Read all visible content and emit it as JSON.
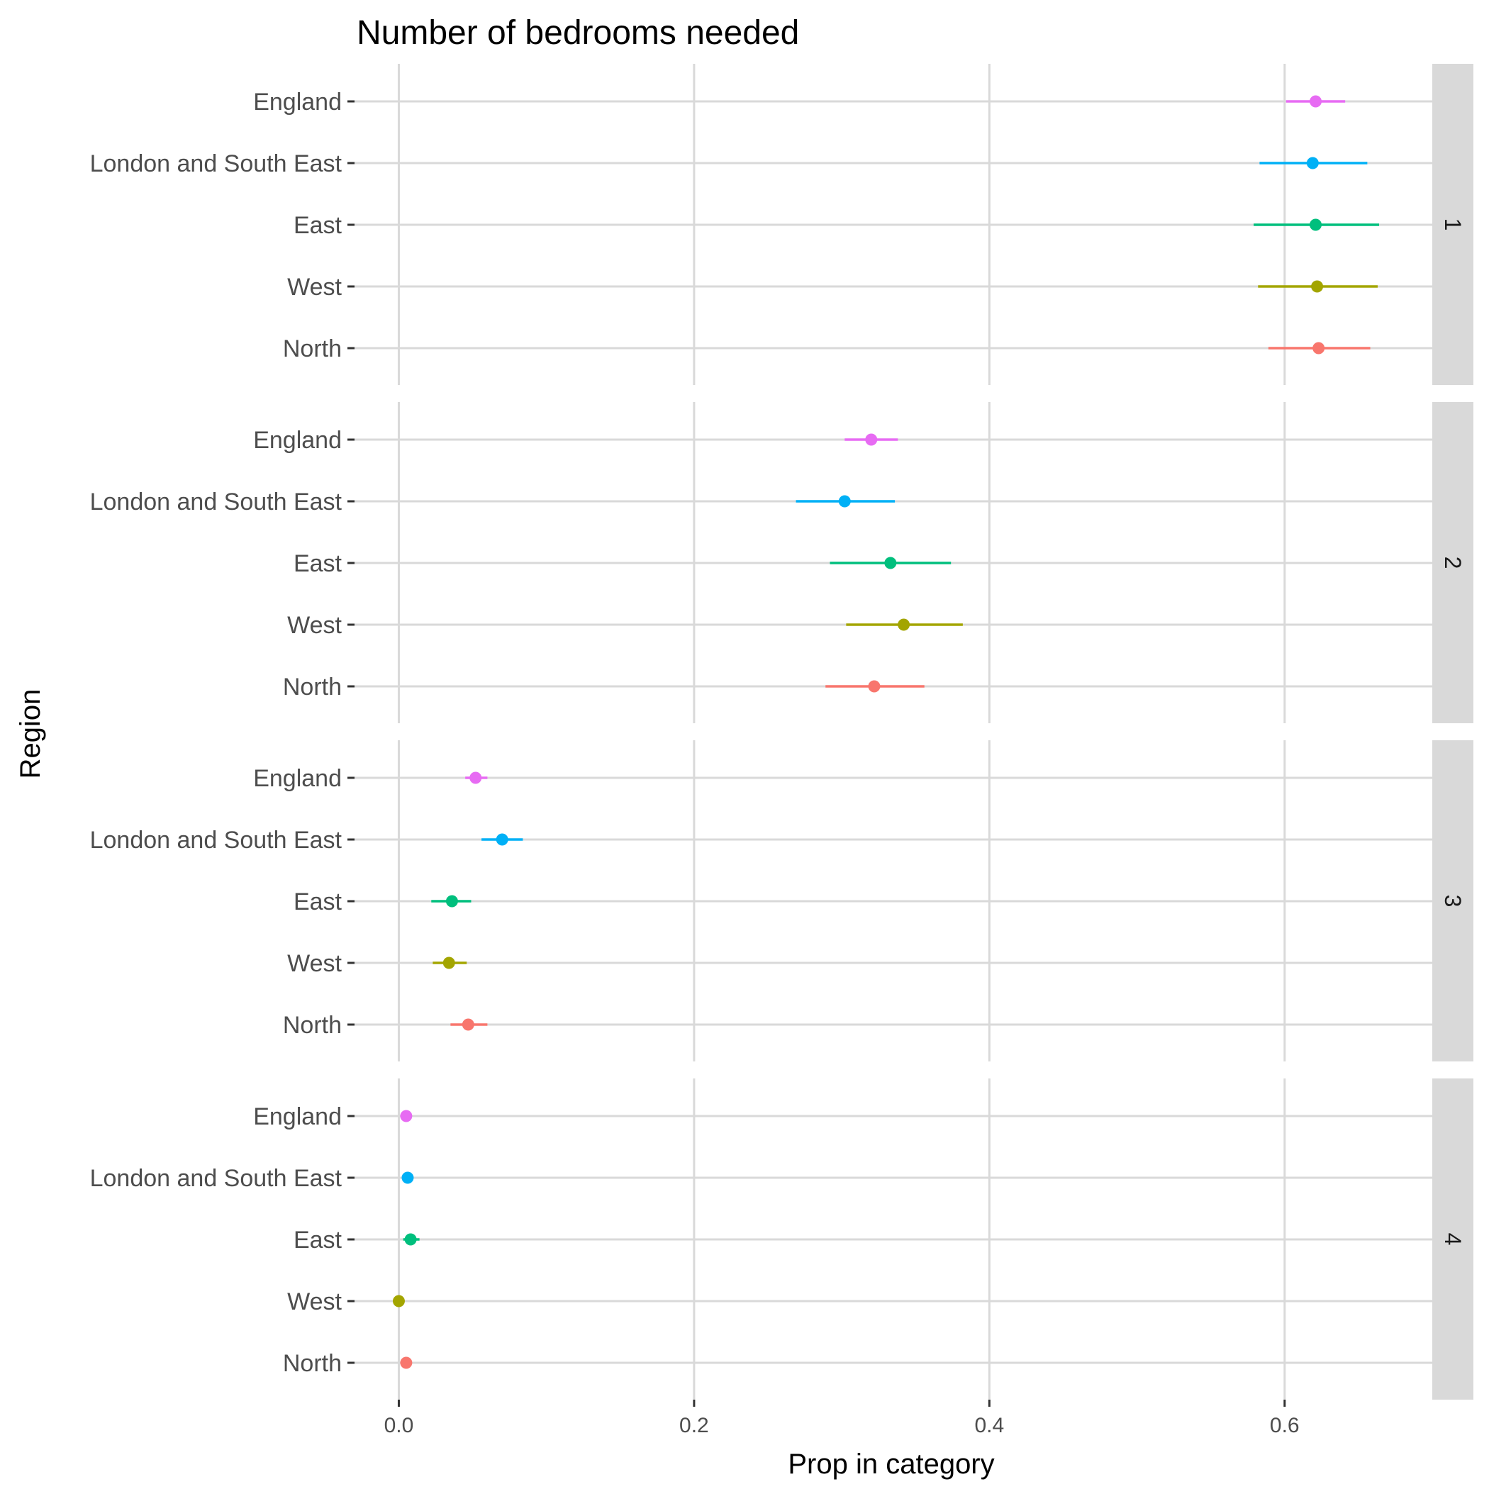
{
  "chart_data": {
    "type": "scatter",
    "title": "Number of bedrooms needed",
    "xlabel": "Prop in category",
    "ylabel": "Region",
    "xlim": [
      -0.03,
      0.7
    ],
    "x_ticks": [
      "0.0",
      "0.2",
      "0.4",
      "0.6"
    ],
    "x_tick_values": [
      0.0,
      0.2,
      0.4,
      0.6
    ],
    "categories": [
      "England",
      "London and South East",
      "East",
      "West",
      "North"
    ],
    "colors": {
      "England": "#e76bf3",
      "London and South East": "#00b0f6",
      "East": "#00bf7d",
      "West": "#a3a500",
      "North": "#f8766d"
    },
    "grid": true,
    "legend": "none",
    "facets": [
      {
        "label": "1",
        "points": [
          {
            "region": "England",
            "x": 0.621,
            "lo": 0.601,
            "hi": 0.641
          },
          {
            "region": "London and South East",
            "x": 0.619,
            "lo": 0.583,
            "hi": 0.656
          },
          {
            "region": "East",
            "x": 0.621,
            "lo": 0.579,
            "hi": 0.664
          },
          {
            "region": "West",
            "x": 0.622,
            "lo": 0.582,
            "hi": 0.663
          },
          {
            "region": "North",
            "x": 0.623,
            "lo": 0.589,
            "hi": 0.658
          }
        ]
      },
      {
        "label": "2",
        "points": [
          {
            "region": "England",
            "x": 0.32,
            "lo": 0.302,
            "hi": 0.338
          },
          {
            "region": "London and South East",
            "x": 0.302,
            "lo": 0.269,
            "hi": 0.336
          },
          {
            "region": "East",
            "x": 0.333,
            "lo": 0.292,
            "hi": 0.374
          },
          {
            "region": "West",
            "x": 0.342,
            "lo": 0.303,
            "hi": 0.382
          },
          {
            "region": "North",
            "x": 0.322,
            "lo": 0.289,
            "hi": 0.356
          }
        ]
      },
      {
        "label": "3",
        "points": [
          {
            "region": "England",
            "x": 0.052,
            "lo": 0.045,
            "hi": 0.06
          },
          {
            "region": "London and South East",
            "x": 0.07,
            "lo": 0.056,
            "hi": 0.084
          },
          {
            "region": "East",
            "x": 0.036,
            "lo": 0.022,
            "hi": 0.049
          },
          {
            "region": "West",
            "x": 0.034,
            "lo": 0.023,
            "hi": 0.046
          },
          {
            "region": "North",
            "x": 0.047,
            "lo": 0.035,
            "hi": 0.06
          }
        ]
      },
      {
        "label": "4",
        "points": [
          {
            "region": "England",
            "x": 0.005,
            "lo": 0.003,
            "hi": 0.007
          },
          {
            "region": "London and South East",
            "x": 0.006,
            "lo": 0.004,
            "hi": 0.008
          },
          {
            "region": "East",
            "x": 0.008,
            "lo": 0.003,
            "hi": 0.014
          },
          {
            "region": "West",
            "x": 0.0,
            "lo": 0.0,
            "hi": 0.0
          },
          {
            "region": "North",
            "x": 0.005,
            "lo": 0.003,
            "hi": 0.007
          }
        ]
      }
    ]
  }
}
